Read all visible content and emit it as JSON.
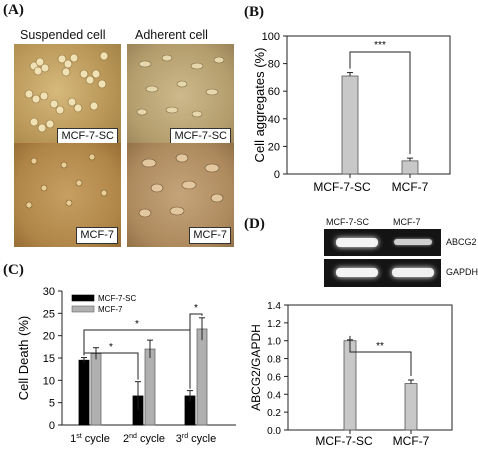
{
  "panels": {
    "A": "(A)",
    "B": "(B)",
    "C": "(C)",
    "D": "(D)"
  },
  "panel_a": {
    "col_suspended": "Suspended cell",
    "col_adherent": "Adherent cell",
    "img_tl_tag": "MCF-7-SC",
    "img_tr_tag": "MCF-7-SC",
    "img_bl_tag": "MCF-7",
    "img_br_tag": "MCF-7"
  },
  "panel_d_gel": {
    "lane1": "MCF-7-SC",
    "lane2": "MCF-7",
    "row1": "ABCG2",
    "row2": "GAPDH"
  },
  "chart_data": [
    {
      "id": "B",
      "type": "bar",
      "categories": [
        "MCF-7-SC",
        "MCF-7"
      ],
      "values": [
        71,
        9.5
      ],
      "errors": [
        2.5,
        2
      ],
      "ylabel": "Cell aggregates (%)",
      "ylim": [
        0,
        100
      ],
      "yticks": [
        "0",
        "20",
        "40",
        "60",
        "80",
        "100"
      ],
      "significance": "***",
      "bar_color": "#c8c8c8"
    },
    {
      "id": "C",
      "type": "bar",
      "categories": [
        "1st cycle",
        "2nd cycle",
        "3rd cycle"
      ],
      "category_parts": [
        [
          "1",
          "st",
          " cycle"
        ],
        [
          "2",
          "nd",
          " cycle"
        ],
        [
          "3",
          "rd",
          " cycle"
        ]
      ],
      "series": [
        {
          "name": "MCF-7-SC",
          "color": "#000000",
          "values": [
            14.5,
            6.5,
            6.5
          ],
          "errors": [
            0.6,
            3.2,
            1.2
          ]
        },
        {
          "name": "MCF-7",
          "color": "#b0b0b0",
          "values": [
            16,
            17,
            21.5
          ],
          "errors": [
            1.3,
            2,
            2.5
          ]
        }
      ],
      "ylabel": "Cell Death (%)",
      "ylim": [
        0,
        30
      ],
      "yticks": [
        "0",
        "5",
        "10",
        "15",
        "20",
        "25",
        "30"
      ],
      "significance": [
        "*",
        "*",
        "*"
      ],
      "legend": "top-left"
    },
    {
      "id": "D",
      "type": "bar",
      "categories": [
        "MCF-7-SC",
        "MCF-7"
      ],
      "values": [
        1.0,
        0.52
      ],
      "errors": [
        0.01,
        0.04
      ],
      "ylabel": "ABCG2/GAPDH",
      "ylim": [
        0,
        1.4
      ],
      "yticks": [
        "0.0",
        "0.2",
        "0.4",
        "0.6",
        "0.8",
        "1.0",
        "1.2",
        "1.4"
      ],
      "significance": "**",
      "bar_color": "#c8c8c8"
    }
  ]
}
